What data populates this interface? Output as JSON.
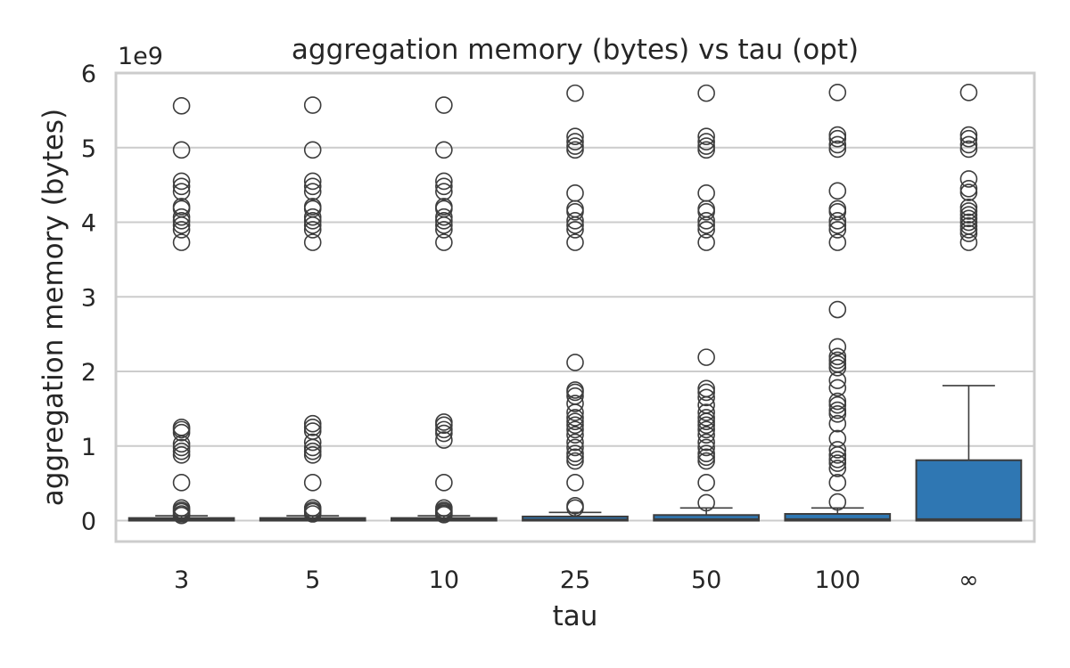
{
  "chart_data": {
    "type": "box",
    "title": "aggregation memory (bytes) vs tau (opt)",
    "xlabel": "tau",
    "ylabel": "aggregation memory (bytes)",
    "y_offset_label": "1e9",
    "y_scale": 1000000000,
    "ylim": [
      -0.28,
      6.0
    ],
    "yticks": [
      0,
      1,
      2,
      3,
      4,
      5,
      6
    ],
    "grid": "y",
    "colors": {
      "box_fill": "#2f77b3",
      "line": "#3d3d3d",
      "grid": "#cccccc",
      "frame": "#cccccc"
    },
    "categories": [
      "3",
      "5",
      "10",
      "25",
      "50",
      "100",
      "∞"
    ],
    "boxes": [
      {
        "category": "3",
        "q1": 0.0,
        "median": 0.012,
        "q3": 0.035,
        "whisker_low": 0.0,
        "whisker_high": 0.065,
        "outliers": [
          5.56,
          4.97,
          4.55,
          4.48,
          4.41,
          4.21,
          4.18,
          4.07,
          4.02,
          3.96,
          3.9,
          3.73,
          1.25,
          1.22,
          1.18,
          1.03,
          0.98,
          0.93,
          0.88,
          0.51,
          0.17,
          0.14,
          0.12,
          0.09,
          0.07
        ]
      },
      {
        "category": "5",
        "q1": 0.0,
        "median": 0.012,
        "q3": 0.035,
        "whisker_low": 0.0,
        "whisker_high": 0.065,
        "outliers": [
          5.57,
          4.97,
          4.55,
          4.48,
          4.41,
          4.21,
          4.18,
          4.07,
          4.02,
          3.96,
          3.9,
          3.73,
          1.3,
          1.25,
          1.2,
          1.05,
          0.98,
          0.93,
          0.88,
          0.51,
          0.17,
          0.14,
          0.12,
          0.09
        ]
      },
      {
        "category": "10",
        "q1": 0.0,
        "median": 0.012,
        "q3": 0.035,
        "whisker_low": 0.0,
        "whisker_high": 0.065,
        "outliers": [
          5.57,
          4.97,
          4.55,
          4.48,
          4.41,
          4.21,
          4.18,
          4.07,
          4.02,
          3.96,
          3.9,
          3.73,
          1.32,
          1.28,
          1.22,
          1.17,
          1.08,
          0.51,
          0.17,
          0.14,
          0.12,
          0.1,
          0.08
        ]
      },
      {
        "category": "25",
        "q1": 0.0,
        "median": 0.015,
        "q3": 0.055,
        "whisker_low": 0.0,
        "whisker_high": 0.11,
        "outliers": [
          5.73,
          5.15,
          5.08,
          5.02,
          4.97,
          4.39,
          4.18,
          4.14,
          4.02,
          3.96,
          3.9,
          3.73,
          2.12,
          1.75,
          1.72,
          1.67,
          1.57,
          1.45,
          1.38,
          1.33,
          1.28,
          1.22,
          1.15,
          1.05,
          0.98,
          0.9,
          0.85,
          0.8,
          0.51,
          0.2,
          0.17
        ]
      },
      {
        "category": "50",
        "q1": 0.0,
        "median": 0.02,
        "q3": 0.075,
        "whisker_low": 0.0,
        "whisker_high": 0.17,
        "outliers": [
          5.73,
          5.15,
          5.08,
          5.02,
          4.97,
          4.39,
          4.18,
          4.14,
          4.02,
          3.96,
          3.9,
          3.73,
          2.19,
          1.77,
          1.72,
          1.65,
          1.55,
          1.45,
          1.38,
          1.33,
          1.28,
          1.22,
          1.15,
          1.05,
          0.98,
          0.9,
          0.85,
          0.8,
          0.51,
          0.24
        ]
      },
      {
        "category": "100",
        "q1": 0.0,
        "median": 0.02,
        "q3": 0.09,
        "whisker_low": 0.0,
        "whisker_high": 0.17,
        "outliers": [
          5.74,
          5.17,
          5.12,
          5.04,
          4.98,
          4.42,
          4.18,
          4.14,
          4.02,
          3.96,
          3.9,
          3.73,
          2.83,
          2.33,
          2.2,
          2.15,
          2.1,
          2.05,
          1.88,
          1.78,
          1.6,
          1.55,
          1.48,
          1.43,
          1.3,
          1.1,
          0.95,
          0.88,
          0.82,
          0.77,
          0.7,
          0.51,
          0.25
        ]
      },
      {
        "category": "∞",
        "q1": 0.0,
        "median": 0.02,
        "q3": 0.81,
        "whisker_low": 0.0,
        "whisker_high": 1.81,
        "outliers": [
          5.74,
          5.17,
          5.12,
          5.04,
          4.98,
          4.58,
          4.45,
          4.4,
          4.2,
          4.15,
          4.1,
          4.05,
          4.0,
          3.95,
          3.9,
          3.85,
          3.73
        ]
      }
    ]
  }
}
